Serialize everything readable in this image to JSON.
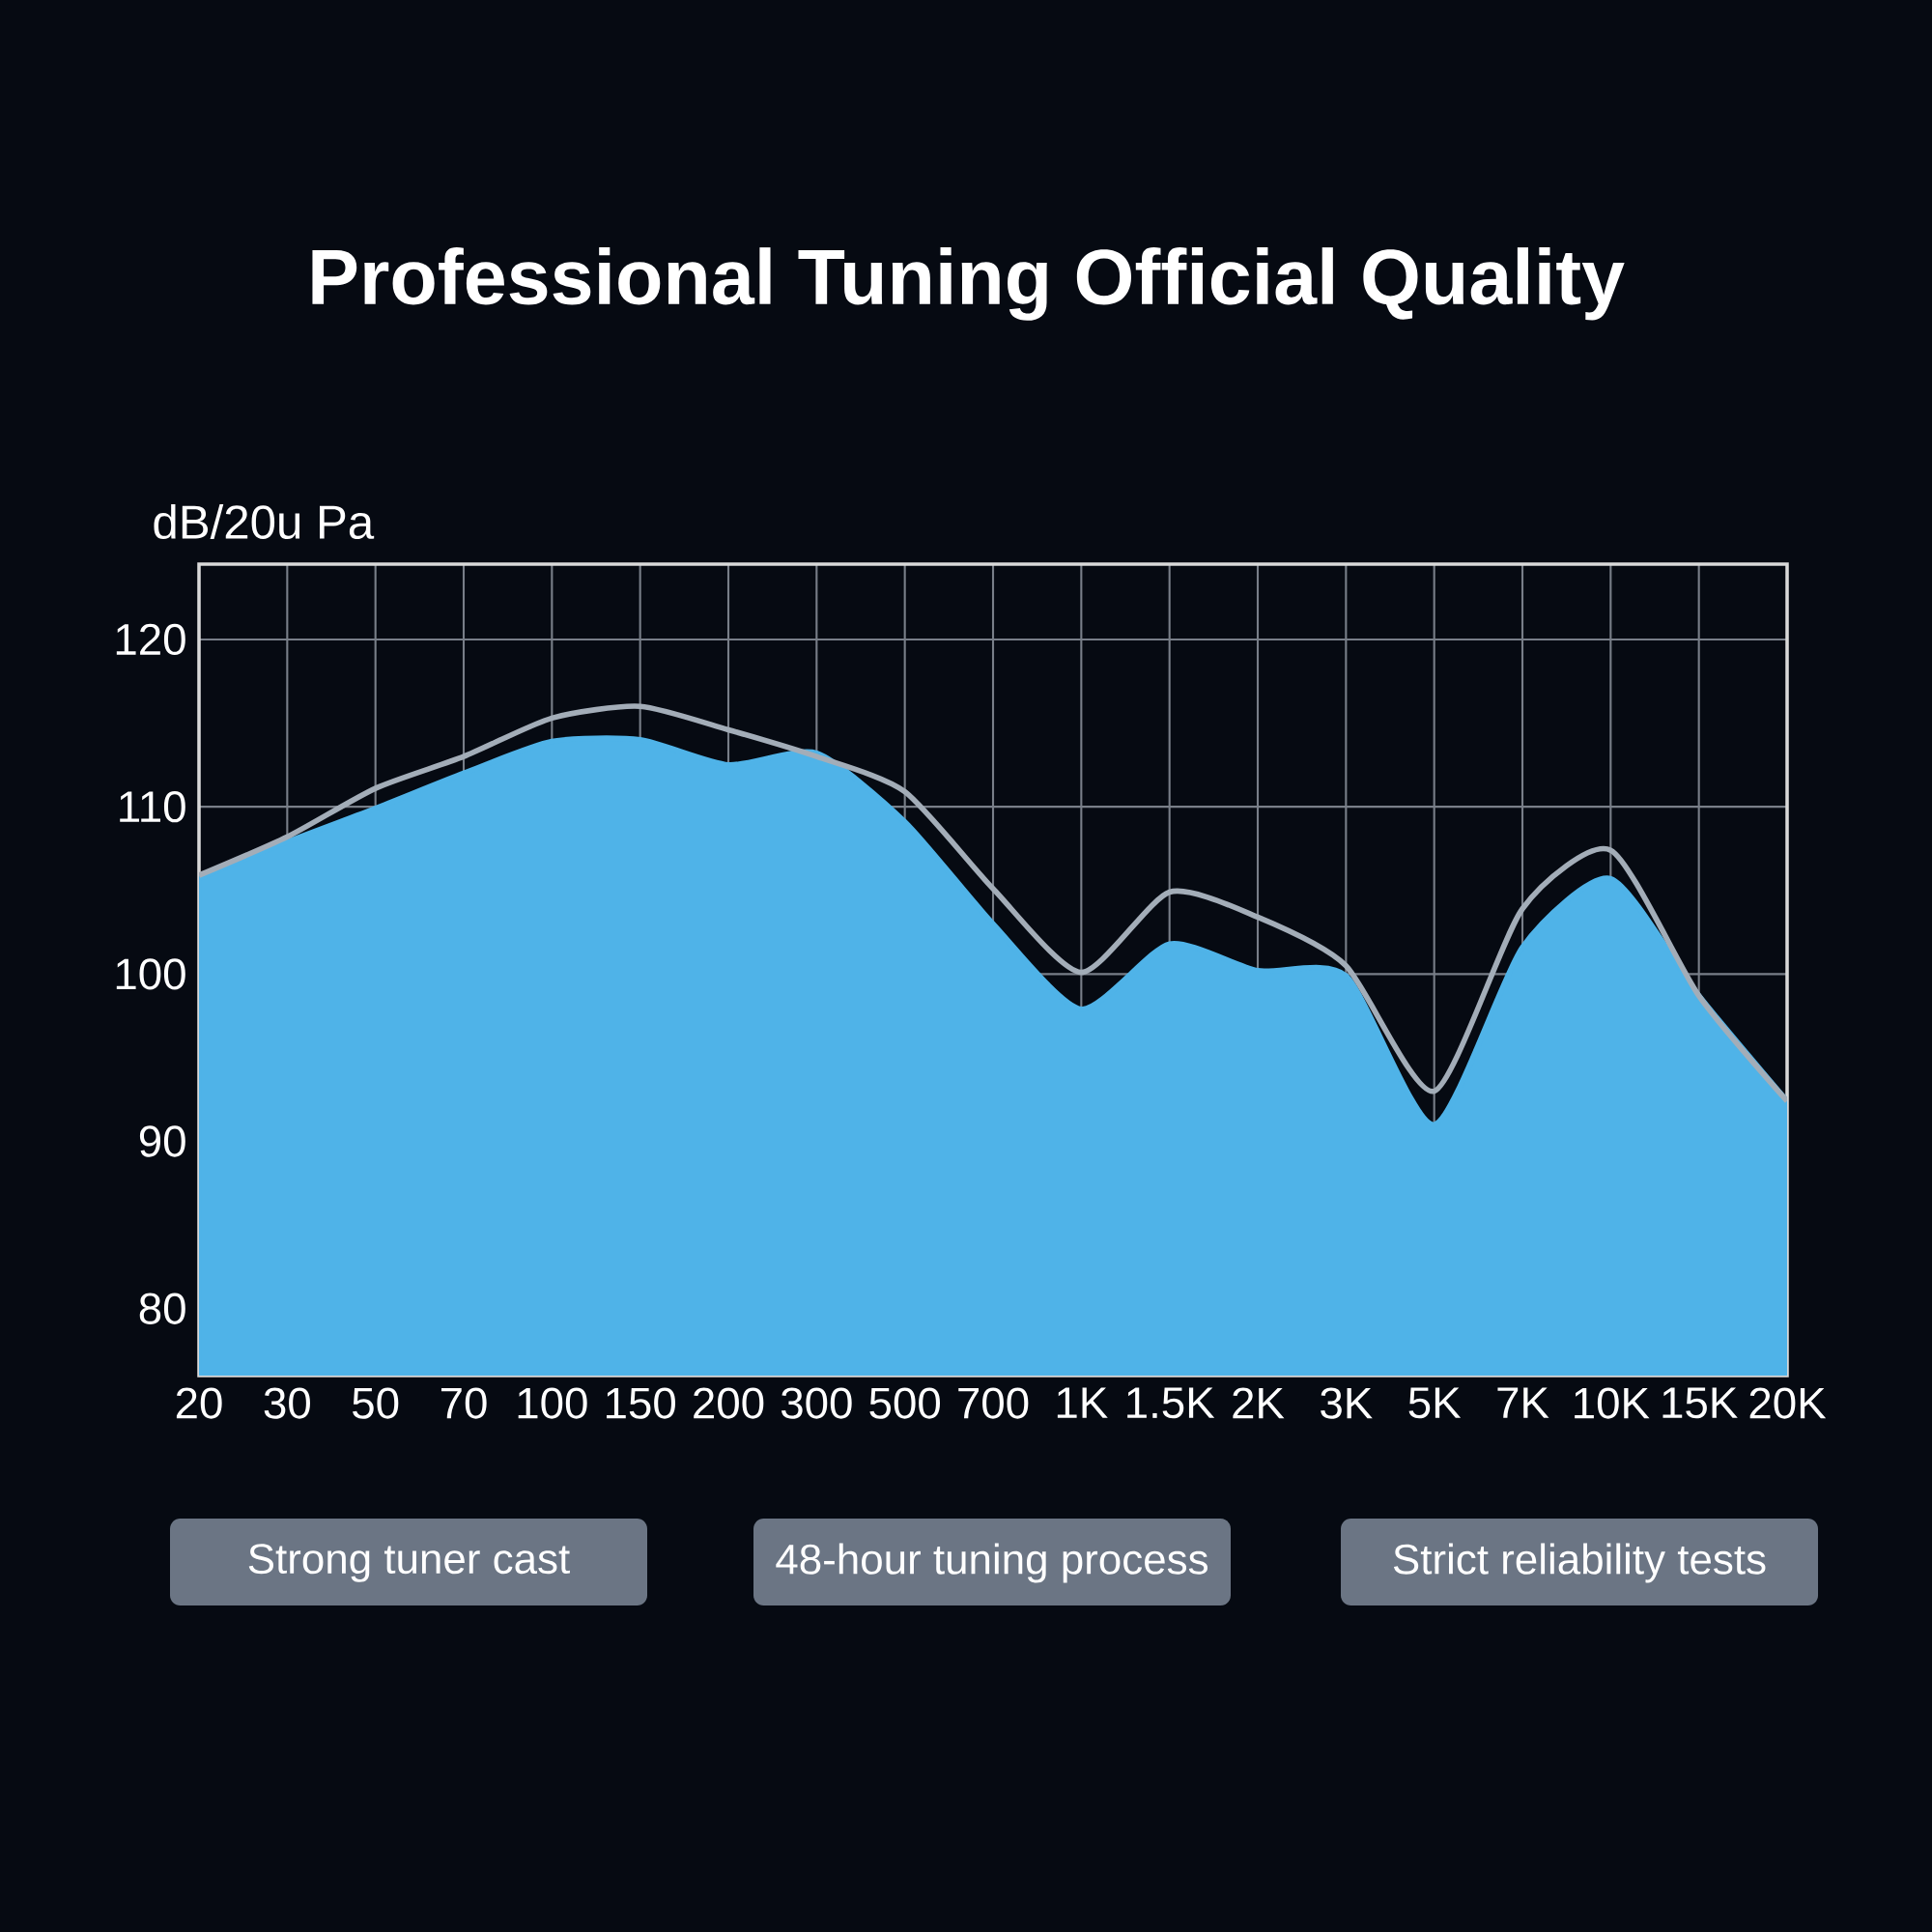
{
  "chart_data": {
    "type": "line",
    "title": "Professional Tuning Official Quality",
    "ylabel": "dB/20u Pa",
    "categories": [
      "20",
      "30",
      "50",
      "70",
      "100",
      "150",
      "200",
      "300",
      "500",
      "700",
      "1K",
      "1.5K",
      "2K",
      "3K",
      "5K",
      "7K",
      "10K",
      "15K",
      "20K"
    ],
    "series": [
      {
        "color": "#a3adb8",
        "values": [
          105.9,
          108.2,
          111.1,
          113,
          115.3,
          116,
          114.6,
          113,
          110.9,
          105.1,
          100.1,
          104.9,
          103.4,
          100.5,
          93,
          103.9,
          107.4,
          98.7,
          92.4
        ]
      },
      {
        "color": "#4fb3e8",
        "type": "area",
        "values": [
          105.7,
          107.9,
          109.9,
          112,
          113.9,
          114,
          112.5,
          113.2,
          109.1,
          103,
          97.9,
          101.8,
          100.2,
          99.9,
          91,
          101.6,
          105.7,
          98.7,
          92.4
        ]
      }
    ],
    "ylim": [
      76,
      124.5
    ],
    "yticks": [
      80,
      90,
      100,
      110,
      120
    ],
    "grid": true,
    "annotations": [
      "Strong tuner cast",
      "48-hour tuning process",
      "Strict reliability tests"
    ]
  }
}
